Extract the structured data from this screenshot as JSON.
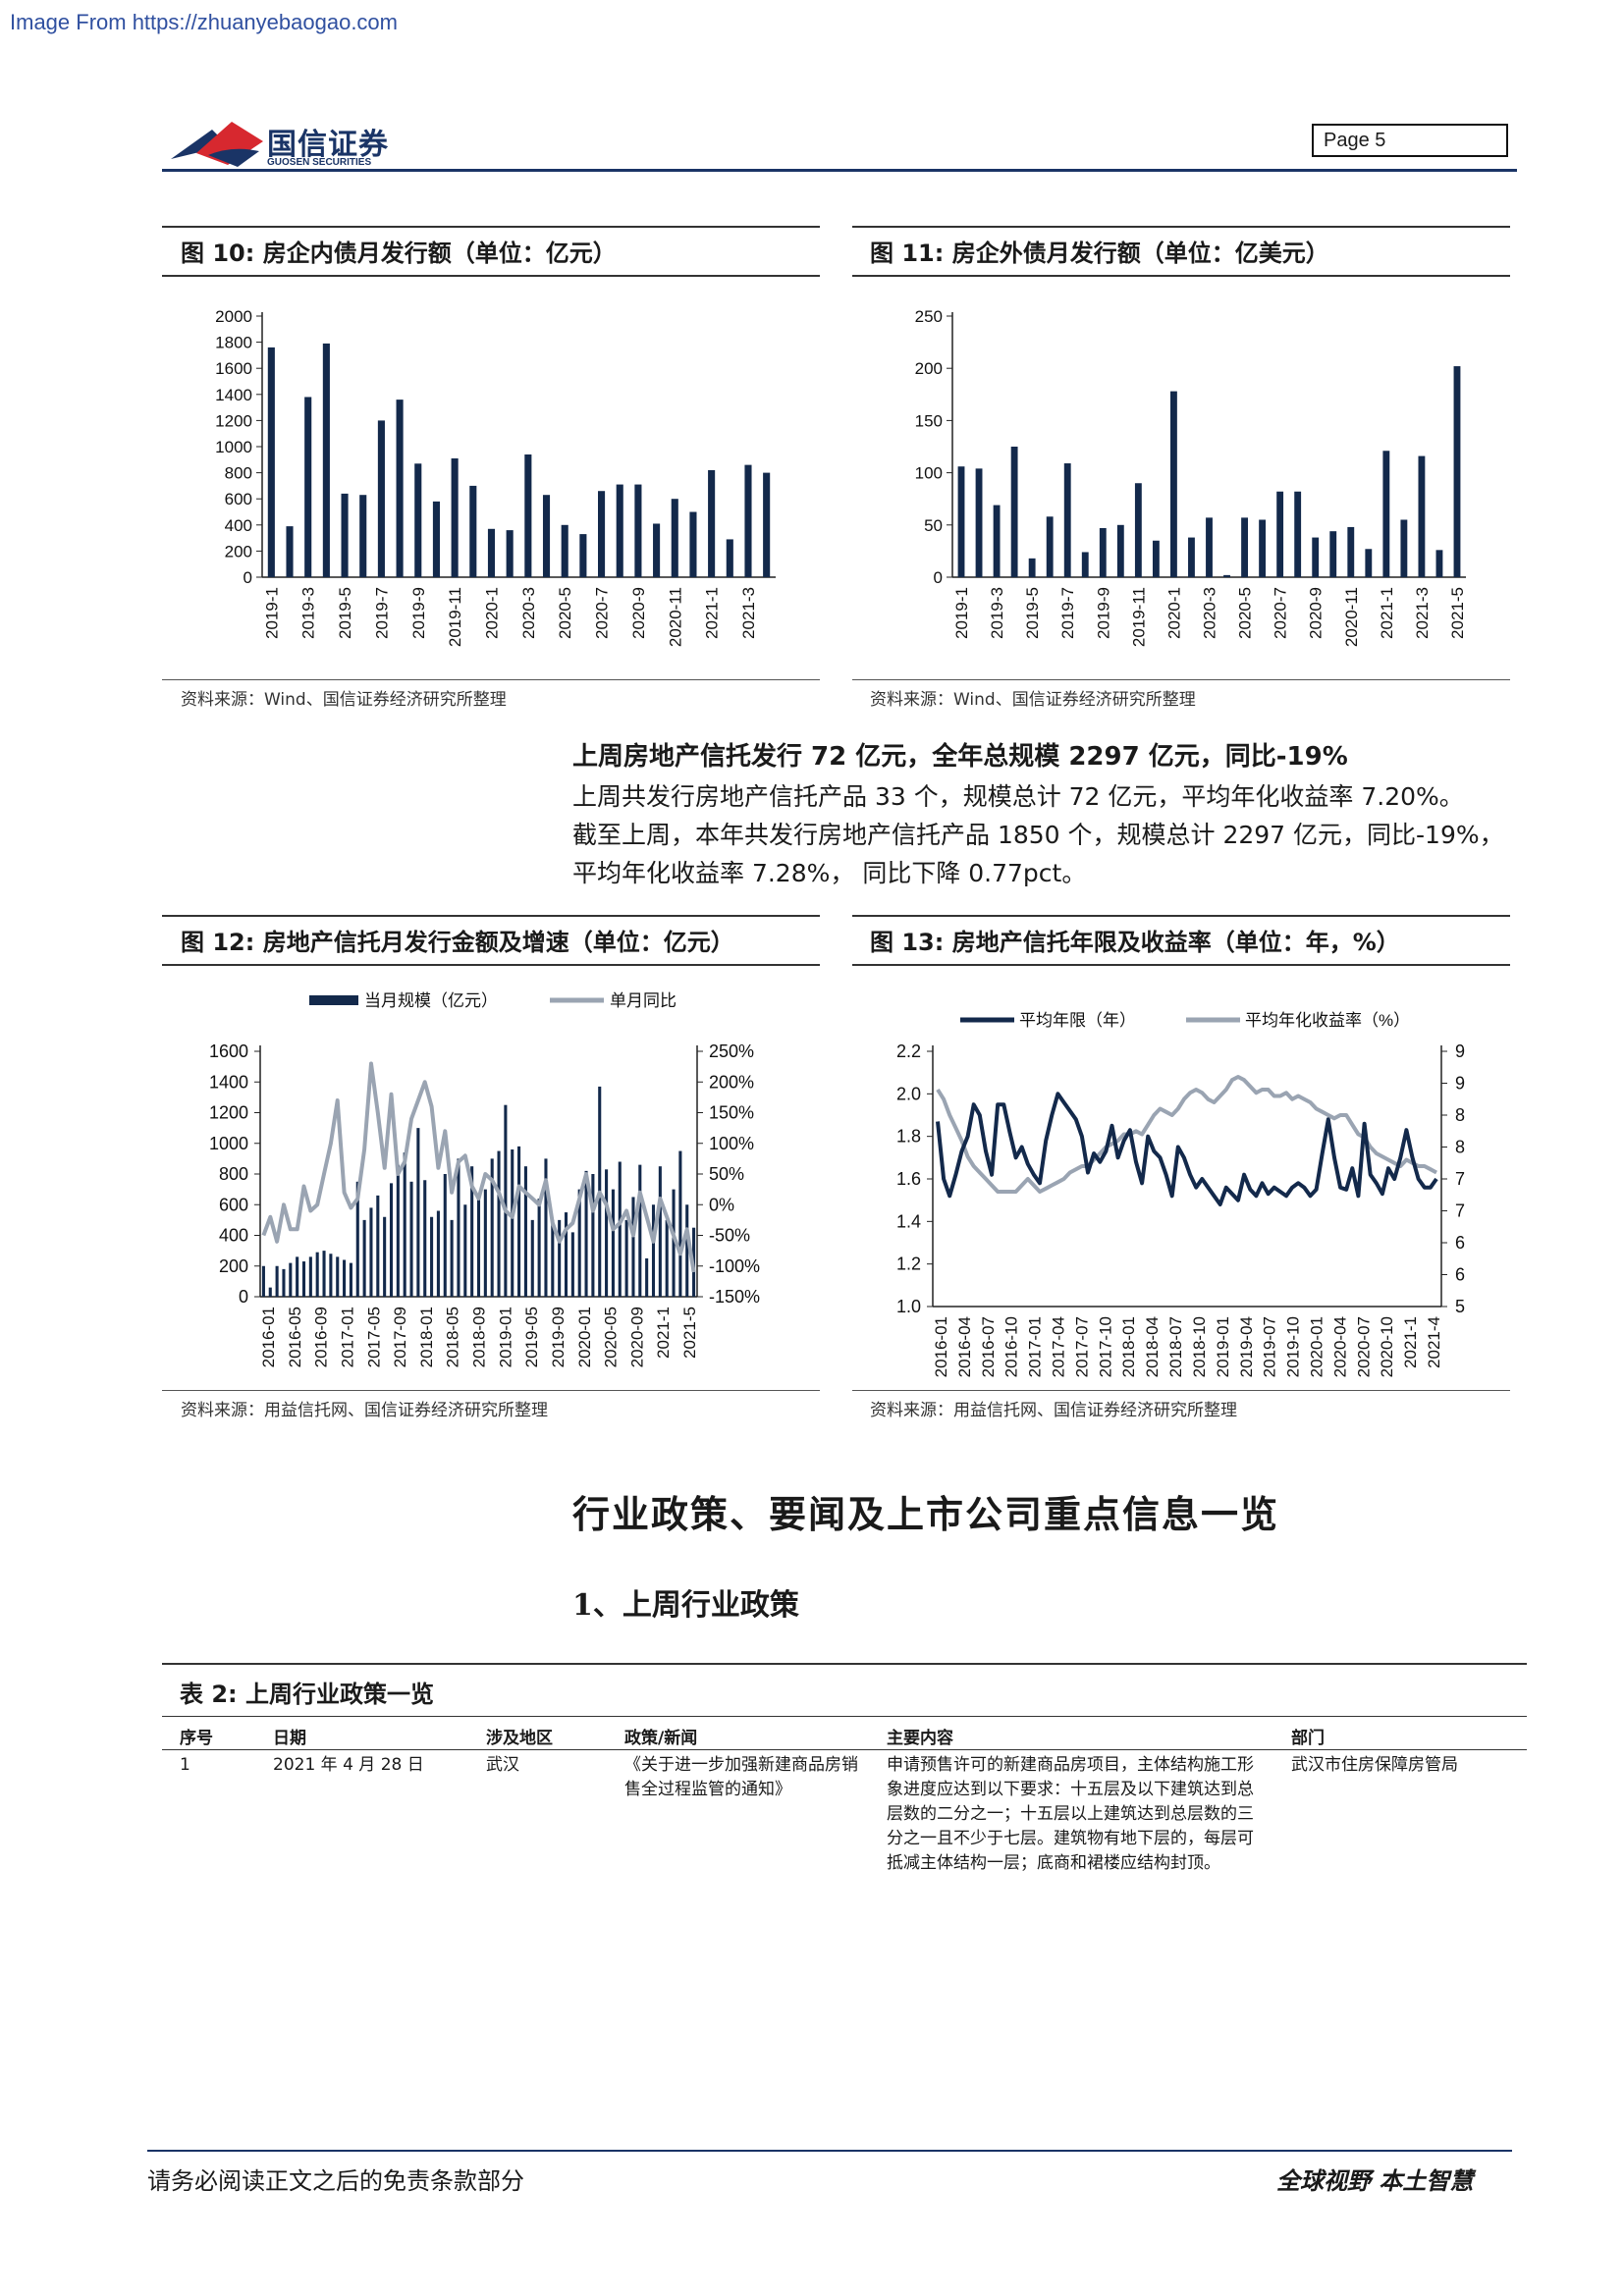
{
  "watermark": "Image From https://zhuanyebaogao.com",
  "header": {
    "logo_cn": "国信证券",
    "logo_en": "GUOSEN SECURITIES",
    "page_label": "Page  5",
    "brand_color": "#1a3466",
    "logo_red": "#d7282f"
  },
  "fig10": {
    "title": "图 10:  房企内债月发行额（单位：亿元）",
    "source": "资料来源：Wind、国信证券经济研究所整理",
    "chart_data": {
      "type": "bar",
      "title": "",
      "xlabel": "",
      "ylabel": "",
      "ylim": [
        0,
        2000
      ],
      "yticks": [
        0,
        200,
        400,
        600,
        800,
        1000,
        1200,
        1400,
        1600,
        1800,
        2000
      ],
      "categories": [
        "2019-1",
        "2019-2",
        "2019-3",
        "2019-4",
        "2019-5",
        "2019-6",
        "2019-7",
        "2019-8",
        "2019-9",
        "2019-10",
        "2019-11",
        "2019-12",
        "2020-1",
        "2020-2",
        "2020-3",
        "2020-4",
        "2020-5",
        "2020-6",
        "2020-7",
        "2020-8",
        "2020-9",
        "2020-10",
        "2020-11",
        "2020-12",
        "2021-1",
        "2021-2",
        "2021-3",
        "2021-4"
      ],
      "tick_labels": [
        "2019-1",
        "2019-3",
        "2019-5",
        "2019-7",
        "2019-9",
        "2019-11",
        "2020-1",
        "2020-3",
        "2020-5",
        "2020-7",
        "2020-9",
        "2020-11",
        "2021-1",
        "2021-3"
      ],
      "values": [
        1760,
        390,
        1380,
        1790,
        640,
        630,
        1200,
        1360,
        870,
        580,
        910,
        700,
        370,
        360,
        940,
        630,
        400,
        330,
        660,
        710,
        710,
        410,
        600,
        500,
        820,
        290,
        860,
        800
      ],
      "color": "#13294b"
    }
  },
  "fig11": {
    "title": "图 11:  房企外债月发行额（单位：亿美元）",
    "source": "资料来源：Wind、国信证券经济研究所整理",
    "chart_data": {
      "type": "bar",
      "title": "",
      "xlabel": "",
      "ylabel": "",
      "ylim": [
        0,
        250
      ],
      "yticks": [
        0,
        50,
        100,
        150,
        200,
        250
      ],
      "categories": [
        "2019-1",
        "2019-2",
        "2019-3",
        "2019-4",
        "2019-5",
        "2019-6",
        "2019-7",
        "2019-8",
        "2019-9",
        "2019-10",
        "2019-11",
        "2019-12",
        "2020-1",
        "2020-2",
        "2020-3",
        "2020-4",
        "2020-5",
        "2020-6",
        "2020-7",
        "2020-8",
        "2020-9",
        "2020-10",
        "2020-11",
        "2020-12",
        "2021-1",
        "2021-2",
        "2021-3",
        "2021-4",
        "2021-5"
      ],
      "tick_labels": [
        "2019-1",
        "2019-3",
        "2019-5",
        "2019-7",
        "2019-9",
        "2019-11",
        "2020-1",
        "2020-3",
        "2020-5",
        "2020-7",
        "2020-9",
        "2020-11",
        "2021-1",
        "2021-3",
        "2021-5"
      ],
      "values": [
        106,
        104,
        69,
        125,
        18,
        58,
        109,
        24,
        47,
        50,
        90,
        35,
        178,
        38,
        57,
        2,
        57,
        55,
        82,
        82,
        38,
        44,
        48,
        27,
        121,
        55,
        116,
        26,
        202
      ],
      "color": "#13294b"
    }
  },
  "trust_section": {
    "heading": "上周房地产信托发行 72 亿元，全年总规模 2297 亿元，同比-19%",
    "lines": [
      "上周共发行房地产信托产品 33 个，规模总计 72 亿元，平均年化收益率 7.20%。",
      "截至上周，本年共发行房地产信托产品 1850 个，规模总计 2297 亿元，同比-19%，",
      "平均年化收益率 7.28%， 同比下降 0.77pct。"
    ]
  },
  "fig12": {
    "title": "图 12:  房地产信托月发行金额及增速（单位：亿元）",
    "source": "资料来源：用益信托网、国信证券经济研究所整理",
    "chart_data": {
      "type": "bar+line",
      "title": "",
      "legend_placement": "top",
      "left_axis": {
        "ylim": [
          0,
          1600
        ],
        "ticks": [
          "0",
          "200",
          "400",
          "600",
          "800",
          "1000",
          "1200",
          "1400",
          "1600"
        ]
      },
      "right_axis": {
        "ylim": [
          -150,
          250
        ],
        "ticks": [
          "-150%",
          "-100%",
          "-50%",
          "0%",
          "50%",
          "100%",
          "150%",
          "200%",
          "250%"
        ]
      },
      "tick_labels": [
        "2016-01",
        "2016-05",
        "2016-09",
        "2017-01",
        "2017-05",
        "2017-09",
        "2018-01",
        "2018-05",
        "2018-09",
        "2019-01",
        "2019-05",
        "2019-09",
        "2020-01",
        "2020-05",
        "2020-09",
        "2021-1",
        "2021-5"
      ],
      "series": [
        {
          "name": "当月规模（亿元）",
          "kind": "bar",
          "axis": "left",
          "color": "#13294b",
          "values": [
            200,
            60,
            200,
            180,
            220,
            260,
            230,
            260,
            290,
            300,
            280,
            260,
            240,
            220,
            750,
            500,
            580,
            660,
            520,
            740,
            860,
            940,
            750,
            1100,
            760,
            520,
            560,
            800,
            500,
            900,
            600,
            850,
            650,
            700,
            900,
            950,
            1250,
            960,
            980,
            850,
            500,
            640,
            900,
            500,
            500,
            550,
            420,
            700,
            820,
            800,
            1370,
            830,
            700,
            880,
            500,
            650,
            860,
            250,
            600,
            850,
            500,
            700,
            950,
            600,
            450
          ]
        },
        {
          "name": "单月同比",
          "kind": "line",
          "axis": "right",
          "color": "#9aa4b2",
          "values": [
            -50,
            -20,
            -60,
            0,
            -40,
            -40,
            30,
            -10,
            0,
            50,
            100,
            170,
            20,
            -5,
            10,
            90,
            230,
            150,
            60,
            180,
            50,
            70,
            140,
            170,
            200,
            160,
            60,
            120,
            20,
            70,
            80,
            30,
            10,
            50,
            40,
            20,
            -10,
            -20,
            30,
            20,
            10,
            0,
            40,
            -30,
            -60,
            -40,
            -30,
            10,
            50,
            -10,
            20,
            0,
            -40,
            -30,
            -10,
            -50,
            20,
            -20,
            -60,
            10,
            -20,
            -50,
            -80,
            -40,
            -110
          ]
        }
      ]
    }
  },
  "fig13": {
    "title": "图 13:  房地产信托年限及收益率（单位：年，%）",
    "source": "资料来源：用益信托网、国信证券经济研究所整理",
    "chart_data": {
      "type": "line",
      "title": "",
      "legend_placement": "top",
      "left_axis": {
        "ylim": [
          1.0,
          2.2
        ],
        "ticks": [
          "1.0",
          "1.2",
          "1.4",
          "1.6",
          "1.8",
          "2.0",
          "2.2"
        ]
      },
      "right_axis": {
        "ylim": [
          5,
          9
        ],
        "ticks": [
          "5",
          "6",
          "6",
          "7",
          "7",
          "8",
          "8",
          "9",
          "9"
        ]
      },
      "tick_labels": [
        "2016-01",
        "2016-04",
        "2016-07",
        "2016-10",
        "2017-01",
        "2017-04",
        "2017-07",
        "2017-10",
        "2018-01",
        "2018-04",
        "2018-07",
        "2018-10",
        "2019-01",
        "2019-04",
        "2019-07",
        "2019-10",
        "2020-01",
        "2020-04",
        "2020-07",
        "2020-10",
        "2021-1",
        "2021-4"
      ],
      "series": [
        {
          "name": "平均年限（年）",
          "axis": "left",
          "color": "#13294b",
          "values": [
            1.87,
            1.6,
            1.52,
            1.62,
            1.73,
            1.8,
            1.95,
            1.9,
            1.73,
            1.62,
            1.95,
            1.95,
            1.82,
            1.7,
            1.75,
            1.67,
            1.62,
            1.58,
            1.78,
            1.9,
            2.0,
            1.96,
            1.92,
            1.88,
            1.8,
            1.63,
            1.72,
            1.68,
            1.73,
            1.85,
            1.7,
            1.78,
            1.83,
            1.68,
            1.58,
            1.8,
            1.73,
            1.7,
            1.62,
            1.52,
            1.75,
            1.7,
            1.62,
            1.56,
            1.6,
            1.56,
            1.52,
            1.48,
            1.56,
            1.53,
            1.5,
            1.62,
            1.55,
            1.52,
            1.58,
            1.53,
            1.56,
            1.54,
            1.52,
            1.56,
            1.58,
            1.56,
            1.52,
            1.55,
            1.72,
            1.88,
            1.7,
            1.56,
            1.55,
            1.65,
            1.52,
            1.86,
            1.62,
            1.58,
            1.53,
            1.65,
            1.6,
            1.7,
            1.83,
            1.7,
            1.6,
            1.56,
            1.56,
            1.6
          ]
        },
        {
          "name": "平均年化收益率（%）",
          "axis": "right",
          "color": "#9aa4b2",
          "values": [
            8.4,
            8.25,
            8.0,
            7.8,
            7.6,
            7.35,
            7.2,
            7.1,
            7.0,
            6.9,
            6.8,
            6.8,
            6.8,
            6.8,
            6.9,
            7.0,
            6.9,
            6.8,
            6.85,
            6.9,
            6.95,
            7.0,
            7.1,
            7.15,
            7.2,
            7.2,
            7.3,
            7.4,
            7.5,
            7.55,
            7.6,
            7.7,
            7.7,
            7.75,
            7.7,
            7.85,
            8.0,
            8.1,
            8.05,
            8.0,
            8.1,
            8.25,
            8.35,
            8.4,
            8.35,
            8.25,
            8.2,
            8.3,
            8.4,
            8.55,
            8.6,
            8.55,
            8.45,
            8.35,
            8.4,
            8.4,
            8.3,
            8.3,
            8.35,
            8.25,
            8.3,
            8.25,
            8.2,
            8.1,
            8.05,
            8.0,
            7.95,
            8.0,
            8.0,
            7.85,
            7.7,
            7.65,
            7.5,
            7.4,
            7.35,
            7.3,
            7.25,
            7.2,
            7.3,
            7.25,
            7.2,
            7.2,
            7.15,
            7.1
          ]
        }
      ]
    }
  },
  "policy": {
    "h1": "行业政策、要闻及上市公司重点信息一览",
    "h2": "1、上周行业政策",
    "table_title": "表 2:  上周行业政策一览",
    "columns": [
      "序号",
      "日期",
      "涉及地区",
      "政策/新闻",
      "主要内容",
      "部门"
    ],
    "rows": [
      {
        "no": "1",
        "date": "2021 年 4 月 28 日",
        "region": "武汉",
        "policy": "《关于进一步加强新建商品房销售全过程监管的通知》",
        "content": "申请预售许可的新建商品房项目，主体结构施工形象进度应达到以下要求：十五层及以下建筑达到总层数的二分之一；十五层以上建筑达到总层数的三分之一且不少于七层。建筑物有地下层的，每层可抵减主体结构一层；底商和裙楼应结构封顶。",
        "dept": "武汉市住房保障房管局"
      }
    ]
  },
  "footer": {
    "left": "请务必阅读正文之后的免责条款部分",
    "right": "全球视野   本土智慧"
  }
}
